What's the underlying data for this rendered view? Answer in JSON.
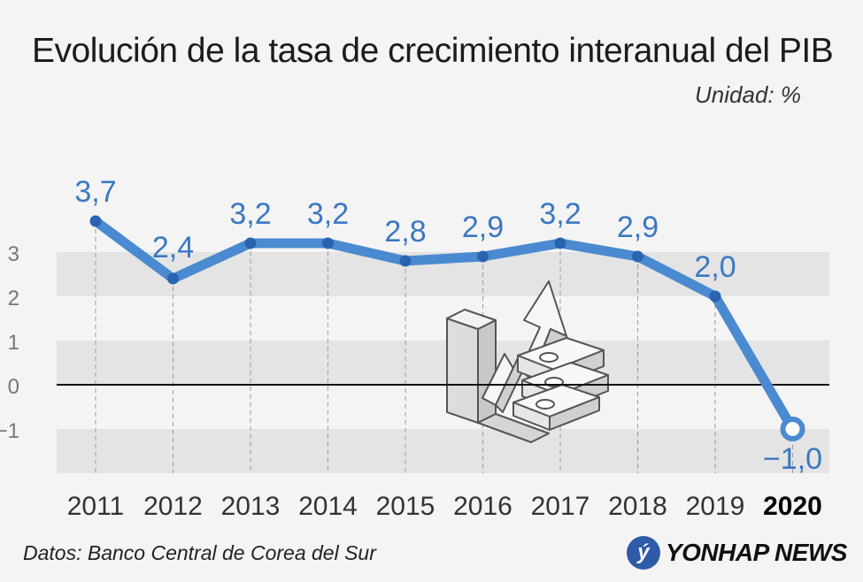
{
  "header": {
    "title": "Evolución de la tasa de crecimiento interanual del PIB",
    "unit": "Unidad: %"
  },
  "footer": {
    "source": "Datos: Banco Central de Corea del Sur",
    "brand": "YONHAP NEWS",
    "brand_icon": "yonhap-logo-icon"
  },
  "colors": {
    "line": "#4a8ad0",
    "point": "#2a64b0",
    "label": "#3a78c2",
    "band": "#e4e4e4",
    "zero_line": "#111111"
  },
  "chart_data": {
    "type": "line",
    "title": "Evolución de la tasa de crecimiento interanual del PIB",
    "xlabel": "",
    "ylabel": "",
    "x": [
      "2011",
      "2012",
      "2013",
      "2014",
      "2015",
      "2016",
      "2017",
      "2018",
      "2019",
      "2020"
    ],
    "series": [
      {
        "values": [
          3.7,
          2.4,
          3.2,
          3.2,
          2.8,
          2.9,
          3.2,
          2.9,
          2.0,
          -1.0
        ],
        "labels": [
          "3,7",
          "2,4",
          "3,2",
          "3,2",
          "2,8",
          "2,9",
          "3,2",
          "2,9",
          "2,0",
          "−1,0"
        ]
      }
    ],
    "y_ticks": [
      3,
      2,
      1,
      0,
      -1
    ],
    "y_tick_labels": [
      "3",
      "2",
      "1",
      "0",
      "−1"
    ],
    "ylim": [
      -2,
      3
    ],
    "highlight_x": "2020",
    "grid": "alternating horizontal bands with vertical dashed lines"
  }
}
